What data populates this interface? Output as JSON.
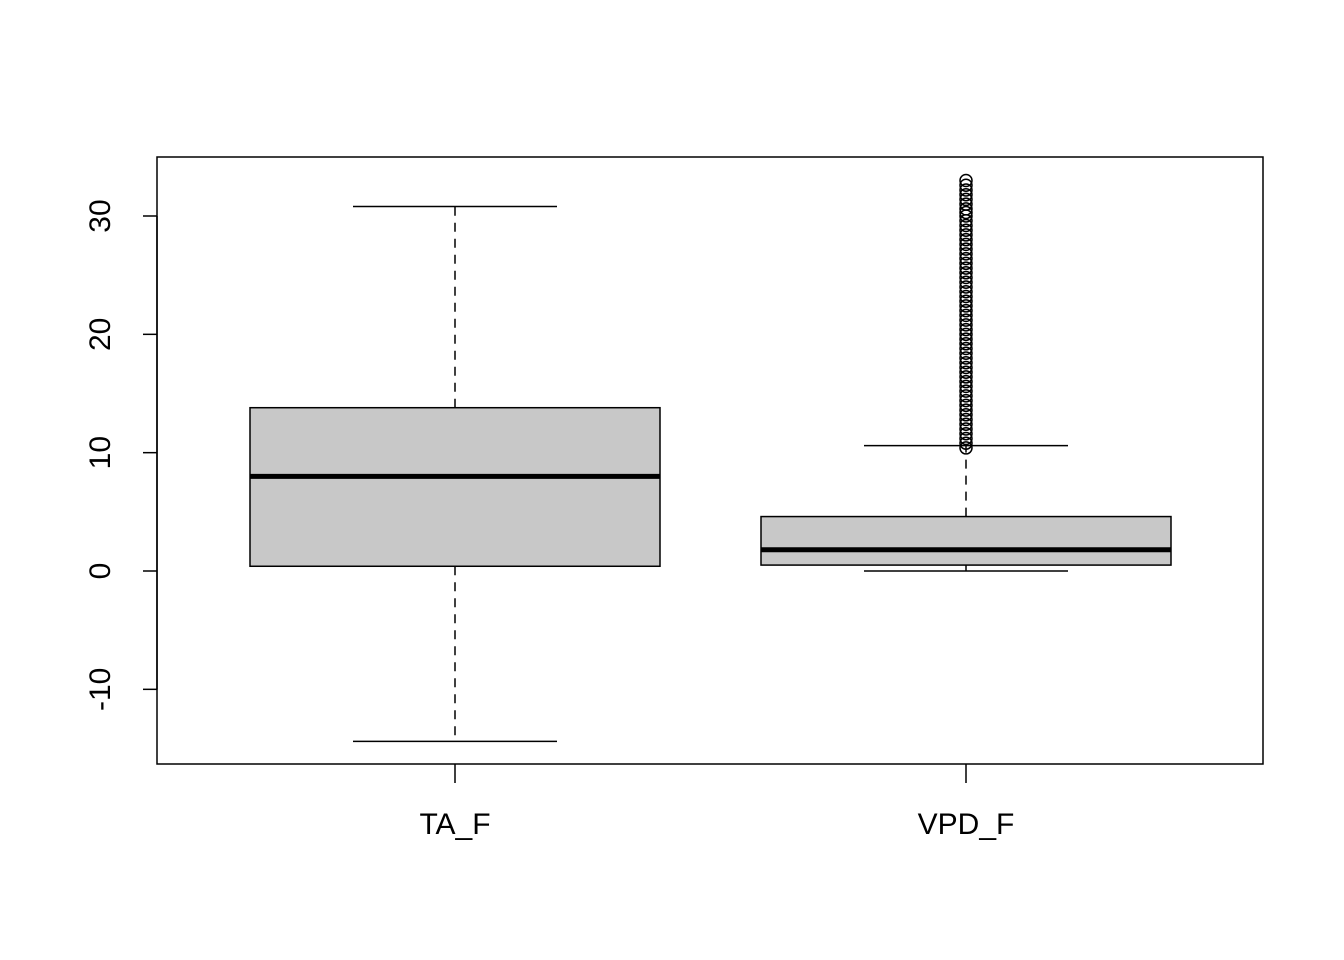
{
  "chart_data": {
    "type": "boxplot",
    "title": "",
    "xlabel": "",
    "ylabel": "",
    "ylim": [
      -16,
      35
    ],
    "yticks": [
      -10,
      0,
      10,
      20,
      30
    ],
    "ytick_labels": [
      "-10",
      "0",
      "10",
      "20",
      "30"
    ],
    "categories": [
      "TA_F",
      "VPD_F"
    ],
    "box_fill": "#c8c8c8",
    "series": [
      {
        "category": "TA_F",
        "whisker_low": -14.4,
        "q1": 0.4,
        "median": 8.0,
        "q3": 13.8,
        "whisker_high": 30.8,
        "outliers": []
      },
      {
        "category": "VPD_F",
        "whisker_low": 0.0,
        "q1": 0.5,
        "median": 1.8,
        "q3": 4.6,
        "whisker_high": 10.6,
        "outliers": [
          10.4,
          10.8,
          11.2,
          11.6,
          12.0,
          12.4,
          12.8,
          13.2,
          13.6,
          14.0,
          14.4,
          14.8,
          15.2,
          15.6,
          16.0,
          16.4,
          16.8,
          17.2,
          17.6,
          18.0,
          18.4,
          18.8,
          19.2,
          19.6,
          20.0,
          20.4,
          20.8,
          21.2,
          21.6,
          22.0,
          22.4,
          22.8,
          23.2,
          23.6,
          24.0,
          24.4,
          24.8,
          25.2,
          25.6,
          26.0,
          26.4,
          26.8,
          27.2,
          27.6,
          28.0,
          28.4,
          28.8,
          29.2,
          29.6,
          30.0,
          30.3,
          30.6,
          31.0,
          31.4,
          31.8,
          32.2,
          32.6,
          33.0
        ]
      }
    ]
  }
}
